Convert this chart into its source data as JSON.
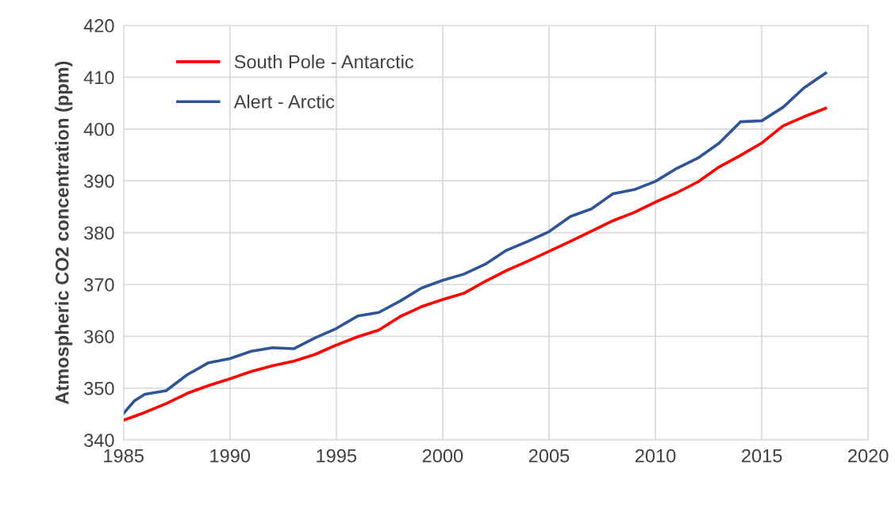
{
  "chart_data": {
    "type": "line",
    "ylabel": "Atmospheric CO2 concentration (ppm)",
    "xlim": [
      1985,
      2020
    ],
    "xticks": [
      1985,
      1990,
      1995,
      2000,
      2005,
      2010,
      2015,
      2020
    ],
    "ylim": [
      340,
      420
    ],
    "yticks": [
      340,
      350,
      360,
      370,
      380,
      390,
      400,
      410,
      420
    ],
    "grid": true,
    "legend": "top left",
    "marker": "none",
    "line_style": "solid",
    "series": [
      {
        "name": "South Pole - Antarctic",
        "color": "#ff0000",
        "x": [
          1985,
          1986,
          1987,
          1988,
          1989,
          1990,
          1991,
          1992,
          1993,
          1994,
          1995,
          1996,
          1997,
          1998,
          1999,
          2000,
          2001,
          2002,
          2003,
          2004,
          2005,
          2006,
          2007,
          2008,
          2009,
          2010,
          2011,
          2012,
          2013,
          2014,
          2015,
          2016,
          2017,
          2018
        ],
        "values": [
          343.8,
          345.3,
          347,
          349,
          350.5,
          351.8,
          353.2,
          354.3,
          355.2,
          356.5,
          358.3,
          359.9,
          361.2,
          363.8,
          365.7,
          367.1,
          368.3,
          370.6,
          372.7,
          374.5,
          376.4,
          378.3,
          380.3,
          382.3,
          383.9,
          385.9,
          387.7,
          389.8,
          392.7,
          394.9,
          397.3,
          400.6,
          402.4,
          404
        ]
      },
      {
        "name": "Alert - Arctic",
        "color": "#2f5597",
        "x": [
          1985,
          1985.5,
          1986,
          1987,
          1988,
          1989,
          1990,
          1991,
          1992,
          1993,
          1994,
          1995,
          1996,
          1997,
          1998,
          1999,
          2000,
          2001,
          2002,
          2003,
          2004,
          2005,
          2006,
          2007,
          2008,
          2009,
          2010,
          2011,
          2012,
          2013,
          2014,
          2015,
          2016,
          2017,
          2018
        ],
        "values": [
          345.1,
          347.5,
          348.8,
          349.5,
          352.6,
          354.9,
          355.7,
          357.1,
          357.8,
          357.6,
          359.7,
          361.5,
          363.9,
          364.6,
          366.8,
          369.3,
          370.8,
          372,
          373.9,
          376.6,
          378.3,
          380.2,
          383.1,
          384.6,
          387.5,
          388.3,
          389.9,
          392.4,
          394.4,
          397.3,
          401.4,
          401.6,
          404.2,
          408,
          410.8
        ]
      }
    ]
  }
}
